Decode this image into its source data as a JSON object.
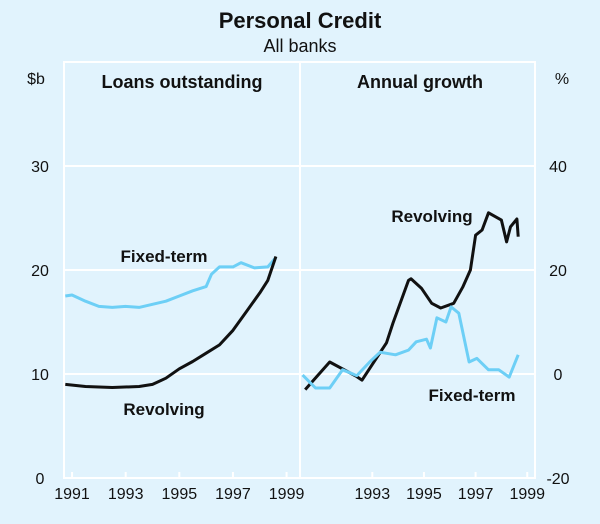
{
  "chart_data": {
    "type": "line",
    "title": "Personal Credit",
    "subtitle": "All banks",
    "left_unit": "$b",
    "right_unit": "%",
    "panels": [
      {
        "title": "Loans outstanding",
        "axis": "left",
        "ylim": [
          0,
          40
        ],
        "yticks": [
          0,
          10,
          20,
          30
        ],
        "xlim": [
          1990.7,
          1999.5
        ],
        "xticks": [
          "1991",
          "1993",
          "1995",
          "1997",
          "1999"
        ],
        "series": [
          {
            "name": "Fixed-term",
            "color": "#6dcff6",
            "x": [
              1990.75,
              1991,
              1991.5,
              1992,
              1992.5,
              1993,
              1993.5,
              1994,
              1994.5,
              1995,
              1995.5,
              1996,
              1996.2,
              1996.5,
              1997,
              1997.3,
              1997.8,
              1998.3,
              1998.6
            ],
            "y": [
              17.5,
              17.6,
              17,
              16.5,
              16.4,
              16.5,
              16.4,
              16.7,
              17.0,
              17.5,
              18,
              18.4,
              19.6,
              20.3,
              20.3,
              20.7,
              20.2,
              20.3,
              21.2
            ]
          },
          {
            "name": "Revolving",
            "color": "#111111",
            "x": [
              1990.75,
              1991.5,
              1992.5,
              1993.5,
              1994,
              1994.5,
              1995,
              1995.5,
              1996,
              1996.5,
              1997,
              1997.5,
              1998,
              1998.3,
              1998.6
            ],
            "y": [
              9,
              8.8,
              8.7,
              8.8,
              9.0,
              9.6,
              10.5,
              11.2,
              12,
              12.8,
              14.2,
              16,
              17.8,
              19,
              21.3
            ]
          }
        ]
      },
      {
        "title": "Annual growth",
        "axis": "right",
        "ylim": [
          -20,
          60
        ],
        "yticks": [
          -20,
          0,
          20,
          40
        ],
        "xlim": [
          1990.2,
          1999.3
        ],
        "xticks": [
          "1993",
          "1995",
          "1997",
          "1999"
        ],
        "series": [
          {
            "name": "Revolving",
            "color": "#111111",
            "x": [
              1990.4,
              1991.35,
              1992.4,
              1992.6,
              1993.55,
              1993.8,
              1994.4,
              1994.5,
              1994.9,
              1995.3,
              1995.65,
              1996.15,
              1996.5,
              1996.8,
              1997.0,
              1997.25,
              1997.5,
              1998.0,
              1998.2,
              1998.35,
              1998.6,
              1998.65
            ],
            "y": [
              -3,
              2.3,
              -0.5,
              -1.2,
              6,
              9.8,
              18,
              18.3,
              16.5,
              13.6,
              12.7,
              13.6,
              16.7,
              20,
              26.7,
              27.7,
              31,
              29.6,
              25.4,
              28.3,
              29.8,
              26.4
            ]
          },
          {
            "name": "Fixed-term",
            "color": "#6dcff6",
            "x": [
              1990.3,
              1990.8,
              1991.35,
              1991.85,
              1992.4,
              1992.9,
              1993.3,
              1993.9,
              1994.4,
              1994.7,
              1995.1,
              1995.25,
              1995.5,
              1995.85,
              1996.05,
              1996.35,
              1996.75,
              1997.05,
              1997.5,
              1997.9,
              1998.3,
              1998.65
            ],
            "y": [
              -0.2,
              -2.7,
              -2.7,
              0.8,
              -0.3,
              2.3,
              4.2,
              3.7,
              4.6,
              6.2,
              6.7,
              5,
              10.8,
              10,
              12.9,
              11.7,
              2.3,
              3,
              0.8,
              0.8,
              -0.6,
              3.7
            ]
          }
        ]
      }
    ],
    "labels": {
      "left_fixed": "Fixed-term",
      "left_revolving": "Revolving",
      "right_revolving": "Revolving",
      "right_fixed": "Fixed-term"
    }
  }
}
